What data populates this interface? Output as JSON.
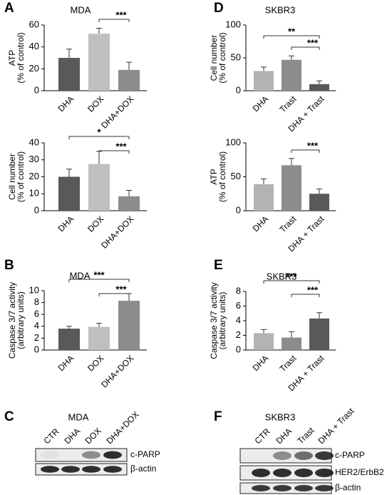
{
  "panel_labels": [
    "A",
    "B",
    "C",
    "D",
    "E",
    "F"
  ],
  "chart_data": [
    {
      "type": "bar",
      "title": "MDA",
      "y_label": [
        "ATP",
        "(% of control)"
      ],
      "categories": [
        "DHA",
        "DOX",
        "DHA+DOX"
      ],
      "values": [
        30,
        52,
        19
      ],
      "errors": [
        8,
        5,
        7
      ],
      "colors": [
        "#595959",
        "#bfbfbf",
        "#8c8c8c"
      ],
      "ylim": [
        0,
        60
      ],
      "yticks": [
        0,
        20,
        40,
        60
      ],
      "brackets": [
        {
          "between": [
            "DOX",
            "DHA+DOX"
          ],
          "label": "***"
        }
      ]
    },
    {
      "type": "bar",
      "y_label": [
        "Cell number",
        "(% of control)"
      ],
      "categories": [
        "DHA",
        "DOX",
        "DHA+DOX"
      ],
      "values": [
        20,
        27.5,
        8.5
      ],
      "errors": [
        4.5,
        7.5,
        3.5
      ],
      "colors": [
        "#595959",
        "#bfbfbf",
        "#8c8c8c"
      ],
      "ylim": [
        0,
        40
      ],
      "yticks": [
        0,
        10,
        20,
        30,
        40
      ],
      "brackets": [
        {
          "between": [
            "DHA",
            "DHA+DOX"
          ],
          "label": "*"
        },
        {
          "between": [
            "DOX",
            "DHA+DOX"
          ],
          "label": "***"
        }
      ]
    },
    {
      "type": "bar",
      "title": "MDA",
      "y_label": [
        "Caspase 3/7 activity",
        "(arbitrary units)"
      ],
      "categories": [
        "DHA",
        "DOX",
        "DHA+DOX"
      ],
      "values": [
        3.6,
        3.9,
        8.3
      ],
      "errors": [
        0.4,
        0.6,
        1.2
      ],
      "colors": [
        "#595959",
        "#bfbfbf",
        "#8c8c8c"
      ],
      "ylim": [
        0,
        10
      ],
      "yticks": [
        0,
        2,
        4,
        6,
        8,
        10
      ],
      "brackets": [
        {
          "between": [
            "DHA",
            "DHA+DOX"
          ],
          "label": "***"
        },
        {
          "between": [
            "DOX",
            "DHA+DOX"
          ],
          "label": "***"
        }
      ]
    },
    {
      "type": "bar",
      "title": "SKBR3",
      "y_label": [
        "Cell number",
        "(% of control)"
      ],
      "categories": [
        "DHA",
        "Trast",
        "DHA + Trast"
      ],
      "values": [
        30,
        47,
        10
      ],
      "errors": [
        6,
        6,
        5
      ],
      "colors": [
        "#b3b3b3",
        "#8c8c8c",
        "#595959"
      ],
      "ylim": [
        0,
        100
      ],
      "yticks": [
        0,
        50,
        100
      ],
      "brackets": [
        {
          "between": [
            "DHA",
            "DHA + Trast"
          ],
          "label": "**"
        },
        {
          "between": [
            "Trast",
            "DHA + Trast"
          ],
          "label": "***"
        }
      ]
    },
    {
      "type": "bar",
      "y_label": [
        "ATP",
        "(% of control)"
      ],
      "categories": [
        "DHA",
        "Trast",
        "DHA + Trast"
      ],
      "values": [
        39,
        67,
        25
      ],
      "errors": [
        8,
        10,
        7
      ],
      "colors": [
        "#b3b3b3",
        "#8c8c8c",
        "#595959"
      ],
      "ylim": [
        0,
        100
      ],
      "yticks": [
        0,
        50,
        100
      ],
      "brackets": [
        {
          "between": [
            "Trast",
            "DHA + Trast"
          ],
          "label": "***"
        }
      ]
    },
    {
      "type": "bar",
      "title": "SKBR3",
      "y_label": [
        "Caspase 3/7 activity",
        "(arbitrary units)"
      ],
      "categories": [
        "DHA",
        "Trast",
        "DHA + Trast"
      ],
      "values": [
        2.3,
        1.7,
        4.3
      ],
      "errors": [
        0.5,
        0.8,
        0.8
      ],
      "colors": [
        "#b3b3b3",
        "#8c8c8c",
        "#595959"
      ],
      "ylim": [
        0,
        8
      ],
      "yticks": [
        0,
        2,
        4,
        6,
        8
      ],
      "brackets": [
        {
          "between": [
            "DHA",
            "DHA + Trast"
          ],
          "label": "***"
        },
        {
          "between": [
            "Trast",
            "DHA + Trast"
          ],
          "label": "***"
        }
      ]
    }
  ],
  "blots": [
    {
      "title": "MDA",
      "lanes": [
        "CTR",
        "DHA",
        "DOX",
        "DHA+DOX"
      ],
      "rows": [
        "c-PARP",
        "β-actin"
      ]
    },
    {
      "title": "SKBR3",
      "lanes": [
        "CTR",
        "DHA",
        "Trast",
        "DHA + Trast"
      ],
      "rows": [
        "c-PARP",
        "HER2/ErbB2",
        "β-actin"
      ]
    }
  ]
}
